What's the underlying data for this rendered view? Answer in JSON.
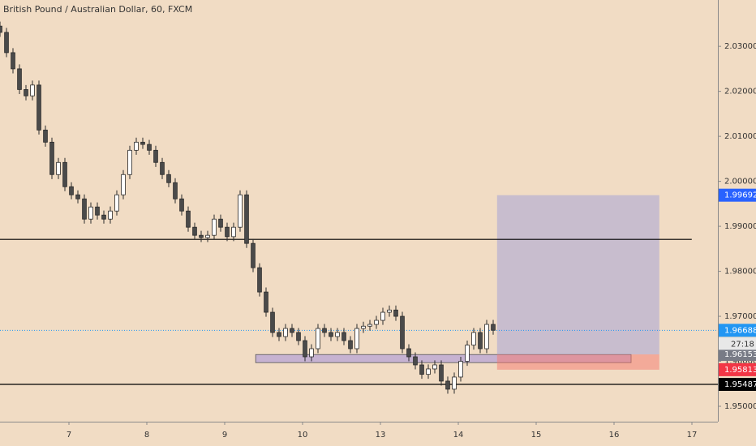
{
  "chart_data": {
    "type": "candlestick",
    "title": "British Pound / Australian Dollar, 60, FXCM",
    "x": [
      0,
      1,
      2,
      3,
      4,
      5,
      6,
      7,
      8,
      9,
      10,
      11,
      12,
      13,
      14,
      15,
      16,
      17,
      18,
      19,
      20,
      21,
      22,
      23,
      24,
      25,
      26,
      27,
      28,
      29,
      30,
      31,
      32,
      33,
      34,
      35,
      36,
      37,
      38,
      39,
      40,
      41,
      42,
      43,
      44,
      45,
      46,
      47,
      48,
      49,
      50,
      51,
      52,
      53,
      54,
      55,
      56,
      57,
      58,
      59,
      60,
      61,
      62,
      63,
      64,
      65,
      66,
      67,
      68,
      69,
      70,
      71,
      72,
      73,
      74,
      75,
      76
    ],
    "open": [
      2.0345,
      2.0331,
      2.0286,
      2.025,
      2.0204,
      2.019,
      2.0214,
      2.0114,
      2.0087,
      2.0015,
      2.0042,
      1.9988,
      1.997,
      1.9961,
      1.9916,
      1.9943,
      1.9925,
      1.9916,
      1.9934,
      1.997,
      2.0015,
      2.0069,
      2.0087,
      2.0082,
      2.0069,
      2.0042,
      2.0015,
      1.9997,
      1.9961,
      1.9934,
      1.9898,
      1.988,
      1.9875,
      1.988,
      1.9916,
      1.9898,
      1.9877,
      1.9898,
      1.997,
      1.9862,
      1.9808,
      1.9754,
      1.9709,
      1.9664,
      1.9655,
      1.9673,
      1.9664,
      1.9646,
      1.961,
      1.9628,
      1.9673,
      1.9664,
      1.9655,
      1.9664,
      1.9646,
      1.9628,
      1.9673,
      1.9678,
      1.9682,
      1.9691,
      1.9709,
      1.9714,
      1.97,
      1.9628,
      1.961,
      1.9592,
      1.9571,
      1.9583,
      1.9592,
      1.9556,
      1.9538,
      1.9565,
      1.96,
      1.9636,
      1.9664,
      1.9628,
      1.9682
    ],
    "high": [
      2.0355,
      2.0341,
      2.0296,
      2.026,
      2.0214,
      2.0224,
      2.0224,
      2.0124,
      2.0097,
      2.0052,
      2.0052,
      1.9998,
      1.998,
      1.9971,
      1.9953,
      1.9953,
      1.9935,
      1.9944,
      1.998,
      2.0025,
      2.0079,
      2.0097,
      2.0097,
      2.0092,
      2.0079,
      2.0052,
      2.0025,
      2.0007,
      1.9971,
      1.9944,
      1.9908,
      1.989,
      1.989,
      1.9926,
      1.9926,
      1.9908,
      1.9908,
      1.998,
      1.998,
      1.9872,
      1.9818,
      1.9764,
      1.9719,
      1.9674,
      1.9683,
      1.9683,
      1.9674,
      1.9656,
      1.9638,
      1.9683,
      1.9683,
      1.9674,
      1.9674,
      1.9674,
      1.9656,
      1.9683,
      1.9688,
      1.9692,
      1.9701,
      1.9719,
      1.9724,
      1.9724,
      1.971,
      1.9638,
      1.962,
      1.9602,
      1.9593,
      1.9602,
      1.9602,
      1.9566,
      1.9575,
      1.961,
      1.9646,
      1.9674,
      1.9674,
      1.9692,
      1.9692
    ],
    "low": [
      2.0321,
      2.0276,
      2.024,
      2.0194,
      2.018,
      2.018,
      2.0104,
      2.0077,
      2.0005,
      2.0005,
      1.9978,
      1.996,
      1.9951,
      1.9906,
      1.9906,
      1.9915,
      1.9906,
      1.9906,
      1.9924,
      1.996,
      2.0005,
      2.0059,
      2.0072,
      2.0059,
      2.0032,
      2.0005,
      1.9987,
      1.9951,
      1.9924,
      1.9888,
      1.987,
      1.9865,
      1.9865,
      1.987,
      1.9888,
      1.9867,
      1.9867,
      1.9888,
      1.9852,
      1.9798,
      1.9744,
      1.9699,
      1.9654,
      1.9645,
      1.9645,
      1.9654,
      1.9636,
      1.96,
      1.96,
      1.9618,
      1.9654,
      1.9645,
      1.9645,
      1.9636,
      1.9618,
      1.9618,
      1.9663,
      1.9668,
      1.9672,
      1.9681,
      1.9699,
      1.969,
      1.9618,
      1.96,
      1.9582,
      1.9561,
      1.9561,
      1.9573,
      1.9546,
      1.9528,
      1.9528,
      1.9555,
      1.959,
      1.9626,
      1.9618,
      1.9618,
      1.9659
    ],
    "close": [
      2.0331,
      2.0286,
      2.025,
      2.0204,
      2.019,
      2.0214,
      2.0114,
      2.0087,
      2.0015,
      2.0042,
      1.9988,
      1.997,
      1.9961,
      1.9916,
      1.9943,
      1.9925,
      1.9916,
      1.9934,
      1.997,
      2.0015,
      2.0069,
      2.0087,
      2.0082,
      2.0069,
      2.0042,
      2.0015,
      1.9997,
      1.9961,
      1.9934,
      1.9898,
      1.988,
      1.9875,
      1.988,
      1.9916,
      1.9898,
      1.9877,
      1.9898,
      1.997,
      1.9862,
      1.9808,
      1.9754,
      1.9709,
      1.9664,
      1.9655,
      1.9673,
      1.9664,
      1.9646,
      1.961,
      1.9628,
      1.9673,
      1.9664,
      1.9655,
      1.9664,
      1.9646,
      1.9628,
      1.9673,
      1.9678,
      1.9682,
      1.9691,
      1.9709,
      1.9714,
      1.97,
      1.9628,
      1.961,
      1.9592,
      1.9571,
      1.9583,
      1.9592,
      1.9556,
      1.9538,
      1.9565,
      1.96,
      1.9636,
      1.9664,
      1.9628,
      1.9682,
      1.9669
    ],
    "up_color": "#ffffff",
    "down_color": "#4a4a4a",
    "wick_color": "#2b2b2b",
    "xlim": [
      0,
      110.625
    ],
    "xticks": [
      {
        "value": 10.625,
        "label": "7"
      },
      {
        "value": 22.625,
        "label": "8"
      },
      {
        "value": 34.625,
        "label": "9"
      },
      {
        "value": 46.625,
        "label": "10"
      },
      {
        "value": 58.625,
        "label": "13"
      },
      {
        "value": 70.625,
        "label": "14"
      },
      {
        "value": 82.625,
        "label": "15"
      },
      {
        "value": 94.625,
        "label": "16"
      },
      {
        "value": 106.625,
        "label": "17"
      }
    ],
    "ylim": [
      1.94658,
      2.0403
    ],
    "yticks": [
      {
        "value": 1.95,
        "label": "1.95000"
      },
      {
        "value": 1.96,
        "label": "1.96000"
      },
      {
        "value": 1.97,
        "label": "1.97000"
      },
      {
        "value": 1.98,
        "label": "1.98000"
      },
      {
        "value": 1.99,
        "label": "1.99000"
      },
      {
        "value": 2.0,
        "label": "2.00000"
      },
      {
        "value": 2.01,
        "label": "2.01000"
      },
      {
        "value": 2.02,
        "label": "2.02000"
      },
      {
        "value": 2.03,
        "label": "2.03000"
      }
    ],
    "horizontal_lines": [
      {
        "value": 1.9871,
        "color": "#000000",
        "x_end": 106.6
      },
      {
        "value": 1.96688,
        "color": "#2196f3",
        "style": "dotted",
        "label_color": "#2196f3"
      },
      {
        "value": 1.95487,
        "color": "#000000",
        "label_color": "#000000"
      }
    ],
    "countdown": "27:18",
    "position": {
      "x_start": 76.6,
      "x_end": 101.6,
      "entry": 1.96153,
      "target": 1.99692,
      "stop": 1.95813,
      "target_color": "#2962ff",
      "entry_color": "#787b86",
      "stop_color": "#f23645"
    },
    "rectangle": {
      "x_start": 39.4,
      "x_end": 97.25,
      "top": 1.9615,
      "bottom": 1.9597
    }
  }
}
